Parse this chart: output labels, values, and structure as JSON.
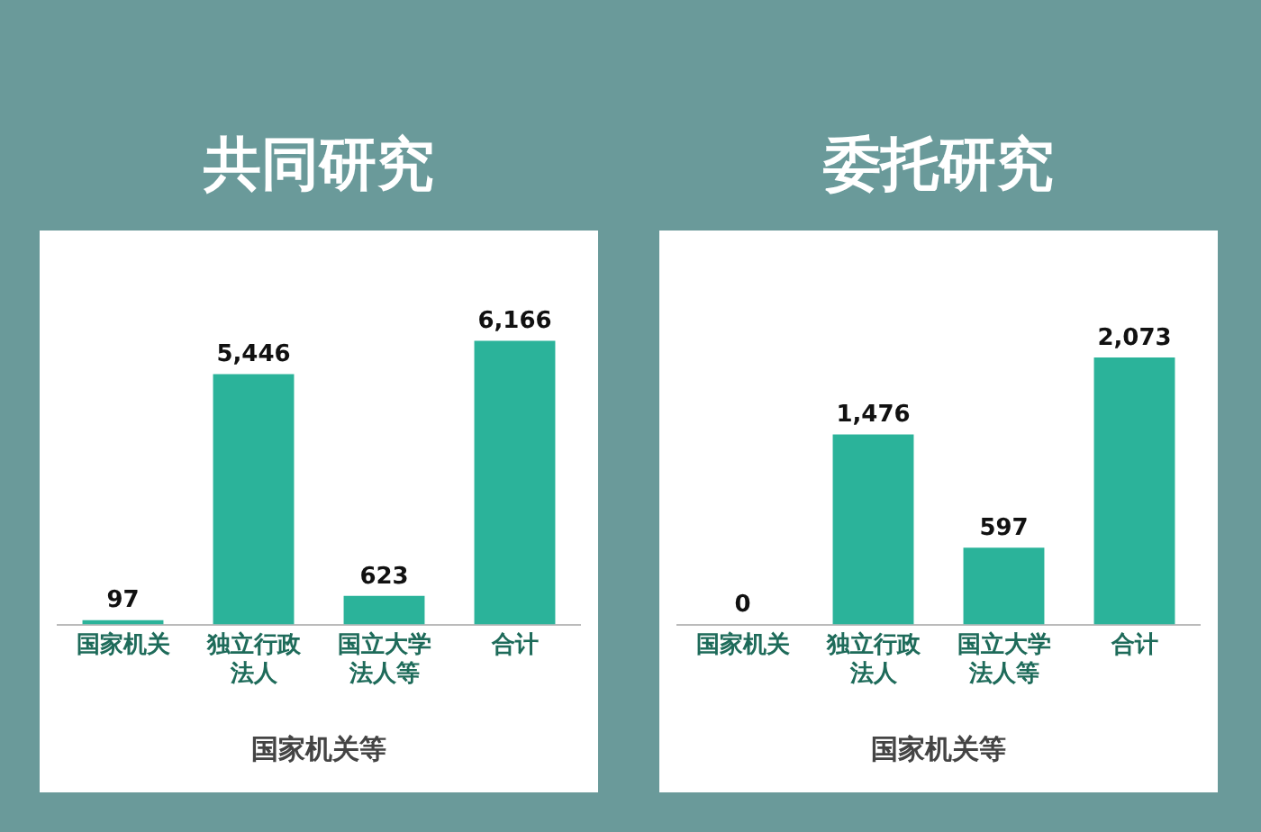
{
  "chart_data": [
    {
      "type": "bar",
      "title": "共同研究",
      "xlabel": "国家机关等",
      "categories": [
        "国家机关",
        "独立行政法人",
        "国立大学法人等",
        "合计"
      ],
      "values": [
        97,
        5446,
        623,
        6166
      ],
      "value_labels": [
        "97",
        "5,446",
        "623",
        "6,166"
      ],
      "color": "#2bb39a"
    },
    {
      "type": "bar",
      "title": "委托研究",
      "xlabel": "国家机关等",
      "categories": [
        "国家机关",
        "独立行政法人",
        "国立大学法人等",
        "合计"
      ],
      "values": [
        0,
        1476,
        597,
        2073
      ],
      "value_labels": [
        "0",
        "1,476",
        "597",
        "2,073"
      ],
      "color": "#2bb39a"
    }
  ]
}
